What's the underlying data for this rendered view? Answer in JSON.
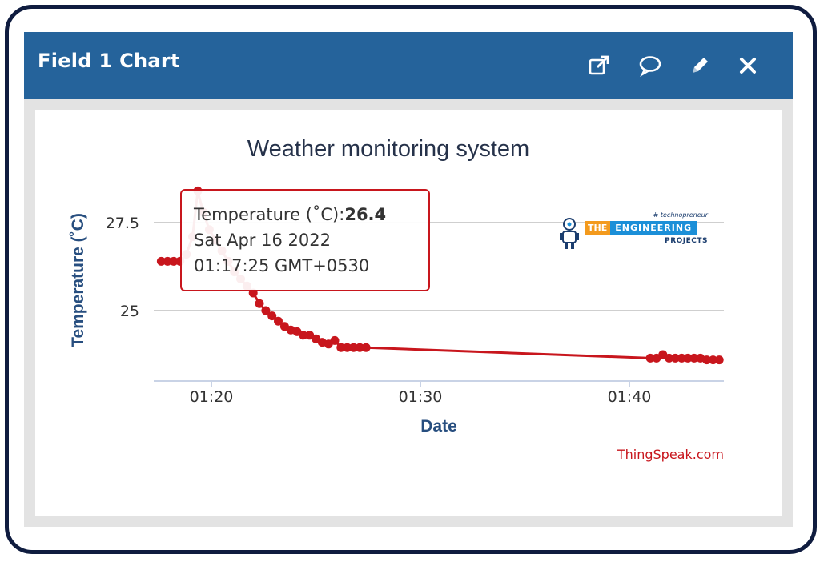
{
  "widget": {
    "title": "Field 1 Chart",
    "actions": [
      {
        "name": "open-external-icon"
      },
      {
        "name": "comment-icon"
      },
      {
        "name": "pencil-icon"
      },
      {
        "name": "close-icon"
      }
    ]
  },
  "colors": {
    "header": "#25639b",
    "series": "#c8161d",
    "axis_text": "#274e7f",
    "credit": "#c8161d"
  },
  "brand": {
    "tag": "# technopreneur",
    "the": "THE",
    "engineering": "ENGINEERING",
    "projects": "PROJECTS"
  },
  "credit": "ThingSpeak.com",
  "tooltip": {
    "label": "Temperature (˚C):",
    "value": "26.4",
    "date": "Sat Apr 16 2022",
    "time": "01:17:25 GMT+0530"
  },
  "chart_data": {
    "type": "line",
    "title": "Weather monitoring system",
    "xlabel": "Date",
    "ylabel": "Temperature (˚C)",
    "x_unit": "minutes past 01:00",
    "xlim": [
      17.5,
      44.6
    ],
    "ylim": [
      23.5,
      28.5
    ],
    "x_ticks": [
      {
        "v": 20,
        "label": "01:20"
      },
      {
        "v": 30,
        "label": "01:30"
      },
      {
        "v": 40,
        "label": "01:40"
      }
    ],
    "y_ticks": [
      {
        "v": 25,
        "label": "25"
      },
      {
        "v": 27.5,
        "label": "27.5"
      }
    ],
    "grid": true,
    "series": [
      {
        "name": "Temperature (˚C)",
        "x": [
          17.6,
          17.9,
          18.2,
          18.5,
          18.8,
          19.1,
          19.35,
          19.6,
          19.9,
          20.2,
          20.5,
          20.8,
          21.1,
          21.4,
          21.7,
          22.0,
          22.3,
          22.6,
          22.9,
          23.2,
          23.5,
          23.8,
          24.1,
          24.4,
          24.7,
          25.0,
          25.3,
          25.6,
          25.9,
          26.2,
          26.5,
          26.8,
          27.1,
          27.4,
          41.0,
          41.3,
          41.6,
          41.9,
          42.2,
          42.5,
          42.8,
          43.1,
          43.4,
          43.7,
          44.0,
          44.3
        ],
        "y": [
          26.4,
          26.4,
          26.4,
          26.4,
          26.6,
          27.1,
          28.4,
          27.8,
          27.3,
          27.0,
          26.7,
          26.4,
          26.1,
          25.9,
          25.7,
          25.5,
          25.2,
          25.0,
          24.85,
          24.7,
          24.55,
          24.45,
          24.4,
          24.3,
          24.3,
          24.2,
          24.1,
          24.05,
          24.15,
          23.95,
          23.95,
          23.95,
          23.95,
          23.95,
          23.65,
          23.65,
          23.75,
          23.65,
          23.65,
          23.65,
          23.65,
          23.65,
          23.65,
          23.6,
          23.6,
          23.6
        ],
        "highlight_x": 19.35
      }
    ]
  }
}
